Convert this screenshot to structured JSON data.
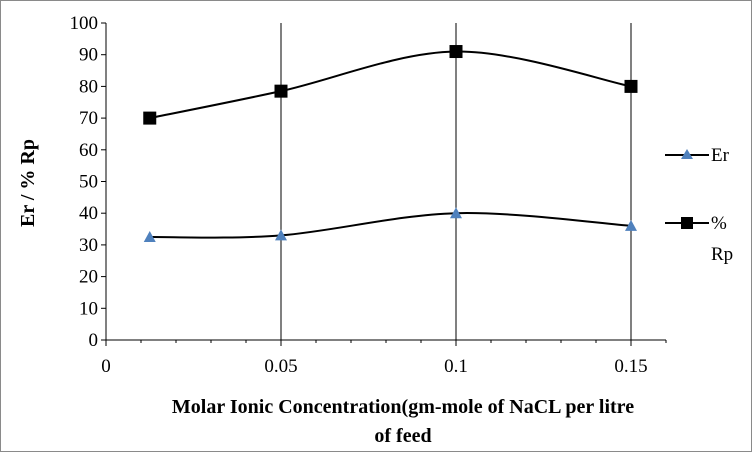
{
  "chart_data": {
    "type": "line",
    "x": [
      0.0125,
      0.05,
      0.1,
      0.15
    ],
    "series": [
      {
        "name": "Er",
        "values": [
          32.5,
          33,
          40,
          36
        ],
        "color": "#4f81bd",
        "marker": "triangle"
      },
      {
        "name": "% Rp",
        "name_lines": [
          "%",
          "Rp"
        ],
        "values": [
          70,
          78.5,
          91,
          80
        ],
        "color": "#000000",
        "marker": "square"
      }
    ],
    "xlabel_lines": [
      "Molar Ionic Concentration(gm-mole  of NaCL per litre",
      "of  feed"
    ],
    "ylabel": "Er / % Rp",
    "xlim": [
      0,
      0.16
    ],
    "ylim": [
      0,
      100
    ],
    "x_ticks": [
      0,
      0.05,
      0.1,
      0.15
    ],
    "x_tick_labels": [
      "0",
      "0.05",
      "0.1",
      "0.15"
    ],
    "y_ticks": [
      0,
      10,
      20,
      30,
      40,
      50,
      60,
      70,
      80,
      90,
      100
    ],
    "y_tick_labels": [
      "0",
      "10",
      "20",
      "30",
      "40",
      "50",
      "60",
      "70",
      "80",
      "90",
      "100"
    ],
    "vertical_gridlines_at": [
      0.05,
      0.1,
      0.15
    ],
    "grid": "vertical",
    "legend_position": "right"
  }
}
